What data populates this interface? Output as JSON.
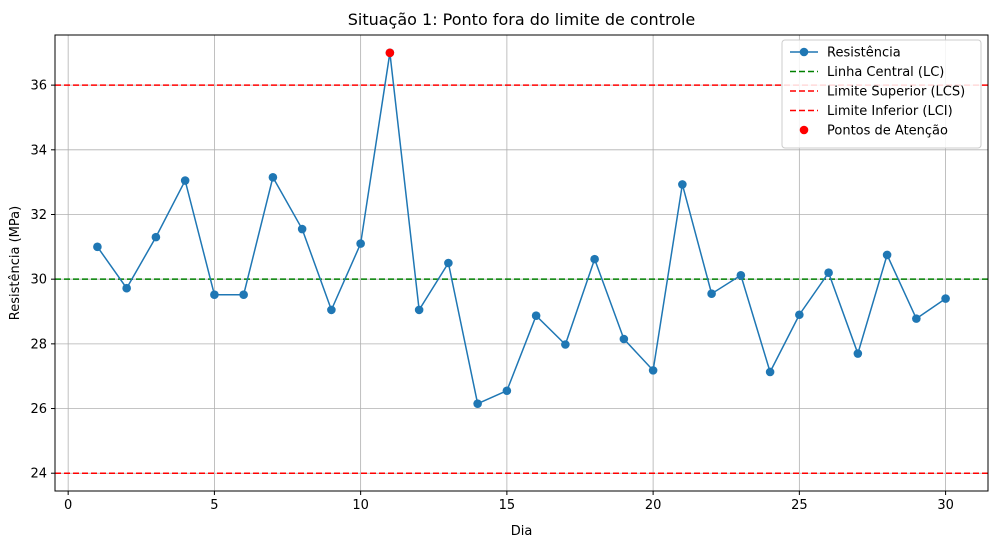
{
  "chart_data": {
    "type": "line",
    "title": "Situação 1: Ponto fora do limite de controle",
    "xlabel": "Dia",
    "ylabel": "Resistência (MPa)",
    "xlim": [
      -0.45,
      31.45
    ],
    "ylim": [
      23.45,
      37.55
    ],
    "xticks": [
      0,
      5,
      10,
      15,
      20,
      25,
      30
    ],
    "yticks": [
      24,
      26,
      28,
      30,
      32,
      34,
      36
    ],
    "grid": true,
    "legend_position": "top-right",
    "series": [
      {
        "name": "Resistência",
        "kind": "line-marker",
        "color": "#1f77b4",
        "x": [
          1,
          2,
          3,
          4,
          5,
          6,
          7,
          8,
          9,
          10,
          11,
          12,
          13,
          14,
          15,
          16,
          17,
          18,
          19,
          20,
          21,
          22,
          23,
          24,
          25,
          26,
          27,
          28,
          29,
          30
        ],
        "y": [
          31.0,
          29.72,
          31.3,
          33.05,
          29.52,
          29.52,
          33.15,
          31.55,
          29.05,
          31.1,
          37.0,
          29.05,
          30.5,
          26.15,
          26.55,
          28.87,
          27.98,
          30.62,
          28.15,
          27.18,
          32.93,
          29.55,
          30.12,
          27.13,
          28.9,
          30.2,
          27.7,
          30.75,
          28.78,
          29.4
        ]
      },
      {
        "name": "Linha Central (LC)",
        "kind": "hline",
        "value": 30,
        "color": "#008000"
      },
      {
        "name": "Limite Superior (LCS)",
        "kind": "hline",
        "value": 36,
        "color": "#ff0000"
      },
      {
        "name": "Limite Inferior (LCI)",
        "kind": "hline",
        "value": 24,
        "color": "#ff0000"
      },
      {
        "name": "Pontos de Atenção",
        "kind": "scatter",
        "color": "#ff0000",
        "x": [
          11
        ],
        "y": [
          37.0
        ]
      }
    ]
  }
}
